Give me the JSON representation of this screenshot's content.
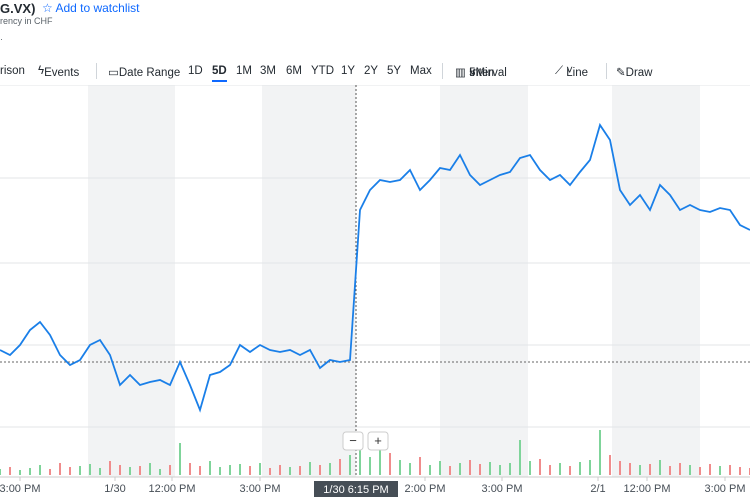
{
  "header": {
    "symbol": "G.VX)",
    "watchlist": "Add to watchlist",
    "currency": "rency in CHF"
  },
  "toolbar": {
    "comparison": "rison",
    "events": "Events",
    "date_range": "Date Range",
    "ranges": [
      "1D",
      "5D",
      "1M",
      "3M",
      "6M",
      "YTD",
      "1Y",
      "2Y",
      "5Y",
      "Max"
    ],
    "selected_range": "5D",
    "interval": "Interval",
    "interval_value": "5Min",
    "chart_type": "Line",
    "draw": "Draw"
  },
  "chart_data": {
    "type": "line",
    "color": "#1a7fe8",
    "values": [
      125,
      120,
      130,
      145,
      153,
      140,
      120,
      110,
      115,
      130,
      135,
      120,
      90,
      100,
      90,
      93,
      95,
      90,
      113,
      90,
      65,
      100,
      103,
      110,
      130,
      123,
      130,
      125,
      123,
      125,
      120,
      125,
      107,
      115,
      113,
      115,
      265,
      285,
      295,
      293,
      295,
      305,
      285,
      295,
      307,
      305,
      320,
      300,
      290,
      295,
      300,
      303,
      317,
      320,
      305,
      295,
      300,
      290,
      303,
      315,
      350,
      335,
      285,
      270,
      280,
      265,
      290,
      280,
      265,
      270,
      265,
      263,
      267,
      265,
      250,
      245
    ],
    "previous_close": 113,
    "ylim": [
      0,
      390
    ],
    "volume": [
      6,
      8,
      5,
      7,
      10,
      6,
      12,
      8,
      9,
      11,
      7,
      14,
      10,
      8,
      9,
      12,
      6,
      10,
      32,
      12,
      9,
      14,
      8,
      10,
      11,
      9,
      12,
      7,
      10,
      8,
      9,
      13,
      10,
      12,
      16,
      20,
      35,
      18,
      40,
      22,
      15,
      12,
      18,
      10,
      14,
      9,
      12,
      15,
      11,
      13,
      10,
      12,
      35,
      14,
      16,
      10,
      12,
      9,
      13,
      15,
      45,
      20,
      14,
      12,
      10,
      11,
      15,
      9,
      12,
      10,
      8,
      11,
      9,
      10,
      8,
      7
    ],
    "volume_lim": [
      0,
      50
    ],
    "xticks": [
      {
        "value": 2,
        "label": "3:00 PM"
      },
      {
        "value": 11.5,
        "label": "1/30"
      },
      {
        "value": 17.2,
        "label": "12:00 PM"
      },
      {
        "value": 26,
        "label": "3:00 PM"
      },
      {
        "value": 42.5,
        "label": "2:00 PM"
      },
      {
        "value": 50.2,
        "label": "3:00 PM"
      },
      {
        "value": 59.8,
        "label": "2/1"
      },
      {
        "value": 64.7,
        "label": "12:00 PM"
      },
      {
        "value": 72.5,
        "label": "3:00 PM"
      }
    ],
    "crosshair": {
      "index": 35.6,
      "label": "1/30 6:15 PM"
    },
    "zoom": [
      "−",
      "+"
    ]
  }
}
